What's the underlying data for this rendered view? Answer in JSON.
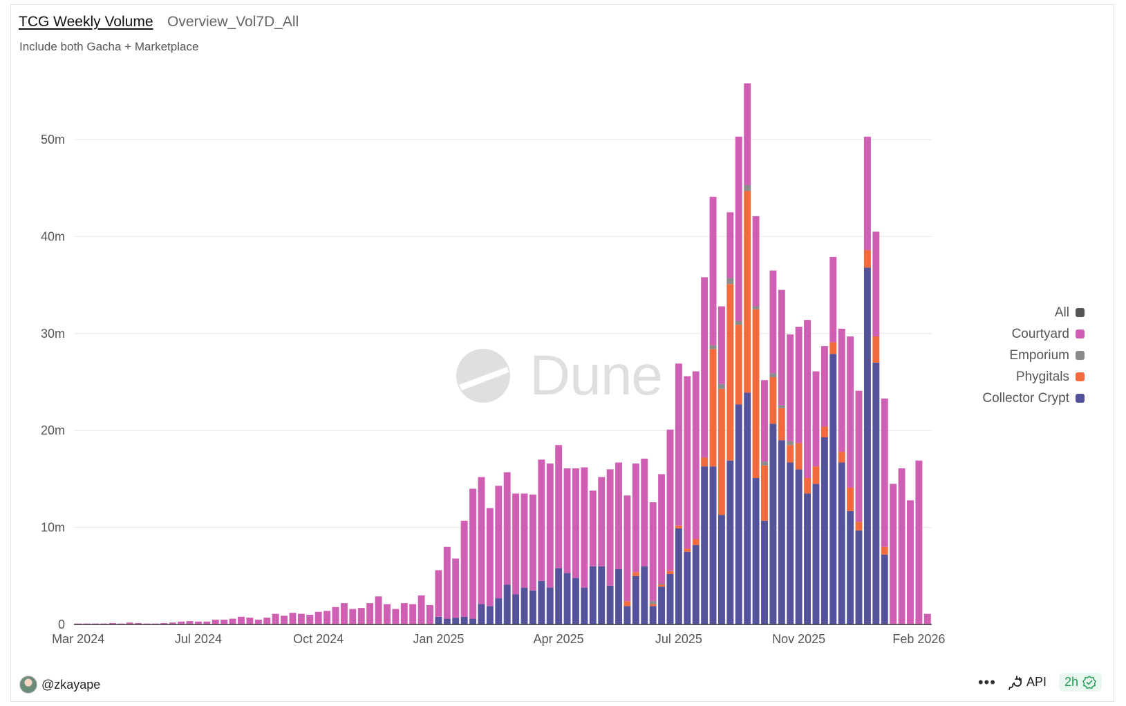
{
  "header": {
    "title": "TCG Weekly Volume",
    "query_name": "Overview_Vol7D_All",
    "description": "Include both Gacha + Marketplace"
  },
  "watermark": {
    "text": "Dune"
  },
  "legend": {
    "items": [
      {
        "label": "All",
        "color": "#555555"
      },
      {
        "label": "Courtyard",
        "color": "#cf5fb3"
      },
      {
        "label": "Emporium",
        "color": "#8c8c8c"
      },
      {
        "label": "Phygitals",
        "color": "#f36a3d"
      },
      {
        "label": "Collector Crypt",
        "color": "#55529c"
      }
    ]
  },
  "footer": {
    "user": "@zkayape",
    "more": "•••",
    "api_label": "API",
    "refresh_label": "2h"
  },
  "chart_data": {
    "type": "bar",
    "stacked": true,
    "ylim": [
      0,
      57
    ],
    "y_ticks": [
      0,
      10,
      20,
      30,
      40,
      50
    ],
    "y_tick_labels": [
      "0",
      "10m",
      "20m",
      "30m",
      "40m",
      "50m"
    ],
    "x_tick_labels": [
      "Mar 2024",
      "Jul 2024",
      "Oct 2024",
      "Jan 2025",
      "Apr 2025",
      "Jul 2025",
      "Nov 2025",
      "Feb 2026"
    ],
    "x_tick_weeks": [
      0,
      14,
      28,
      42,
      56,
      70,
      84,
      98
    ],
    "grid": true,
    "legend_position": "right",
    "series": [
      {
        "name": "Collector Crypt",
        "color": "#55529c",
        "values": [
          0,
          0,
          0,
          0,
          0,
          0,
          0,
          0,
          0,
          0,
          0,
          0,
          0,
          0,
          0,
          0,
          0,
          0,
          0,
          0,
          0,
          0,
          0,
          0,
          0,
          0,
          0,
          0,
          0,
          0,
          0,
          0,
          0,
          0,
          0,
          0,
          0,
          0,
          0,
          0,
          0,
          0,
          0.8,
          0.6,
          0.7,
          0.8,
          0.6,
          2.1,
          1.9,
          2.7,
          4.1,
          3.1,
          3.8,
          3.5,
          4.5,
          3.8,
          5.8,
          5.3,
          4.8,
          3.8,
          6.0,
          6.0,
          4.0,
          5.7,
          1.9,
          5.0,
          6.0,
          1.9,
          3.9,
          5.2,
          9.9,
          7.5,
          8.2,
          16.3,
          16.3,
          11.3,
          16.9,
          22.7,
          23.9,
          15.1,
          10.7,
          20.7,
          19.0,
          16.7,
          16.0,
          13.5,
          14.5,
          19.3,
          27.9,
          16.7,
          11.7,
          9.7,
          36.8,
          27.0,
          7.2,
          0,
          0,
          0,
          0,
          0
        ]
      },
      {
        "name": "Phygitals",
        "color": "#f36a3d",
        "values": [
          0,
          0,
          0,
          0,
          0,
          0,
          0,
          0,
          0,
          0,
          0,
          0,
          0,
          0,
          0,
          0,
          0,
          0,
          0,
          0,
          0,
          0,
          0,
          0,
          0,
          0,
          0,
          0,
          0,
          0,
          0,
          0,
          0,
          0,
          0,
          0,
          0,
          0,
          0,
          0,
          0,
          0,
          0,
          0,
          0,
          0,
          0,
          0,
          0,
          0,
          0,
          0,
          0,
          0,
          0,
          0,
          0,
          0,
          0,
          0,
          0,
          0,
          0,
          0,
          0.5,
          0.4,
          0,
          0.2,
          0.2,
          0.3,
          0.3,
          0.3,
          0.6,
          0.9,
          12.1,
          13.0,
          18.2,
          8.2,
          20.8,
          17.4,
          5.7,
          4.8,
          3.3,
          1.8,
          2.7,
          1.6,
          1.8,
          1.1,
          1.2,
          1.1,
          2.4,
          0.9,
          1.8,
          2.7,
          0.8,
          0,
          0,
          0,
          0,
          0
        ]
      },
      {
        "name": "Emporium",
        "color": "#8c8c8c",
        "values": [
          0,
          0,
          0,
          0,
          0,
          0,
          0,
          0,
          0,
          0,
          0,
          0,
          0,
          0,
          0,
          0,
          0,
          0,
          0,
          0,
          0,
          0,
          0,
          0,
          0,
          0,
          0,
          0,
          0,
          0,
          0,
          0,
          0,
          0,
          0,
          0,
          0,
          0,
          0,
          0,
          0,
          0,
          0,
          0,
          0,
          0,
          0,
          0,
          0,
          0,
          0,
          0,
          0,
          0,
          0,
          0,
          0,
          0,
          0,
          0,
          0,
          0,
          0,
          0,
          0,
          0,
          0,
          0.3,
          0.1,
          0,
          0,
          0,
          0,
          0,
          0.4,
          0.5,
          0.6,
          0.4,
          0.6,
          0.3,
          0.4,
          0.4,
          0.3,
          0.4,
          0,
          0,
          0,
          0,
          0,
          0,
          0,
          0,
          0,
          0,
          0,
          0,
          0,
          0,
          0,
          0
        ]
      },
      {
        "name": "Courtyard",
        "color": "#cf5fb3",
        "values": [
          0.1,
          0.1,
          0.1,
          0.1,
          0.15,
          0.1,
          0.2,
          0.15,
          0.1,
          0.1,
          0.15,
          0.2,
          0.3,
          0.35,
          0.3,
          0.3,
          0.5,
          0.5,
          0.6,
          0.8,
          0.7,
          0.5,
          0.7,
          1.1,
          0.9,
          1.2,
          1.1,
          1.0,
          1.3,
          1.4,
          1.8,
          2.2,
          1.6,
          1.7,
          2.2,
          2.9,
          2.1,
          1.6,
          2.2,
          2.1,
          3.0,
          2.0,
          4.8,
          7.4,
          6.1,
          9.9,
          13.4,
          13.1,
          10.1,
          11.6,
          11.6,
          10.4,
          9.7,
          9.9,
          12.5,
          12.8,
          12.7,
          10.8,
          11.3,
          12.4,
          7.8,
          9.2,
          12.0,
          11.0,
          10.9,
          11.2,
          11.1,
          10.2,
          11.3,
          14.6,
          16.7,
          17.8,
          17.3,
          18.6,
          15.3,
          8.0,
          6.8,
          19.0,
          10.5,
          9.3,
          8.4,
          10.6,
          11.9,
          11.0,
          12.0,
          16.3,
          9.8,
          8.3,
          8.8,
          12.7,
          15.6,
          13.5,
          11.7,
          10.8,
          15.3,
          14.5,
          16.1,
          12.8,
          16.9,
          1.1
        ]
      }
    ]
  }
}
